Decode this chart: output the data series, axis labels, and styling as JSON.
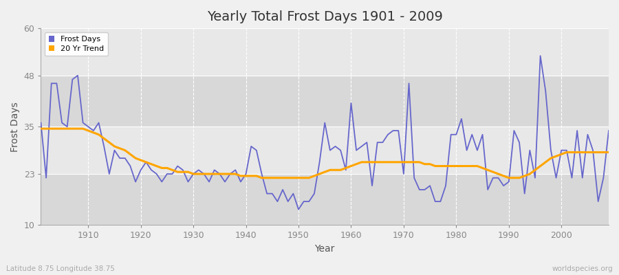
{
  "title": "Yearly Total Frost Days 1901 - 2009",
  "xlabel": "Year",
  "ylabel": "Frost Days",
  "xlim": [
    1901,
    2009
  ],
  "ylim": [
    10,
    60
  ],
  "yticks": [
    10,
    23,
    35,
    48,
    60
  ],
  "xticks": [
    1910,
    1920,
    1930,
    1940,
    1950,
    1960,
    1970,
    1980,
    1990,
    2000
  ],
  "bg_outer": "#f0f0f0",
  "bg_plot": "#e8e8e8",
  "bg_band_light": "#e8e8e8",
  "bg_band_dark": "#d8d8d8",
  "grid_color": "#ffffff",
  "frost_color": "#6666cc",
  "trend_color": "#ffa500",
  "subtitle_left": "Latitude 8.75 Longitude 38.75",
  "subtitle_right": "worldspecies.org",
  "frost_days": {
    "1901": 36,
    "1902": 22,
    "1903": 46,
    "1904": 46,
    "1905": 36,
    "1906": 35,
    "1907": 47,
    "1908": 48,
    "1909": 36,
    "1910": 35,
    "1911": 34,
    "1912": 36,
    "1913": 30,
    "1914": 23,
    "1915": 29,
    "1916": 27,
    "1917": 27,
    "1918": 25,
    "1919": 21,
    "1920": 24,
    "1921": 26,
    "1922": 24,
    "1923": 23,
    "1924": 21,
    "1925": 23,
    "1926": 23,
    "1927": 25,
    "1928": 24,
    "1929": 21,
    "1930": 23,
    "1931": 24,
    "1932": 23,
    "1933": 21,
    "1934": 24,
    "1935": 23,
    "1936": 21,
    "1937": 23,
    "1938": 24,
    "1939": 21,
    "1940": 23,
    "1941": 30,
    "1942": 29,
    "1943": 23,
    "1944": 18,
    "1945": 18,
    "1946": 16,
    "1947": 19,
    "1948": 16,
    "1949": 18,
    "1950": 14,
    "1951": 16,
    "1952": 16,
    "1953": 18,
    "1954": 26,
    "1955": 36,
    "1956": 29,
    "1957": 30,
    "1958": 29,
    "1959": 24,
    "1960": 41,
    "1961": 29,
    "1962": 30,
    "1963": 31,
    "1964": 20,
    "1965": 31,
    "1966": 31,
    "1967": 33,
    "1968": 34,
    "1969": 34,
    "1970": 23,
    "1971": 46,
    "1972": 22,
    "1973": 19,
    "1974": 19,
    "1975": 20,
    "1976": 16,
    "1977": 16,
    "1978": 20,
    "1979": 33,
    "1980": 33,
    "1981": 37,
    "1982": 29,
    "1983": 33,
    "1984": 29,
    "1985": 33,
    "1986": 19,
    "1987": 22,
    "1988": 22,
    "1989": 20,
    "1990": 21,
    "1991": 34,
    "1992": 31,
    "1993": 18,
    "1994": 29,
    "1995": 22,
    "1996": 53,
    "1997": 44,
    "1998": 29,
    "1999": 22,
    "2000": 29,
    "2001": 29,
    "2002": 22,
    "2003": 34,
    "2004": 22,
    "2005": 33,
    "2006": 29,
    "2007": 16,
    "2008": 22,
    "2009": 34
  },
  "trend_days": {
    "1901": 34.5,
    "1902": 34.5,
    "1903": 34.5,
    "1904": 34.5,
    "1905": 34.5,
    "1906": 34.5,
    "1907": 34.5,
    "1908": 34.5,
    "1909": 34.5,
    "1910": 34.0,
    "1911": 33.5,
    "1912": 33.0,
    "1913": 32.0,
    "1914": 31.0,
    "1915": 30.0,
    "1916": 29.5,
    "1917": 29.0,
    "1918": 28.0,
    "1919": 27.0,
    "1920": 26.5,
    "1921": 26.0,
    "1922": 25.5,
    "1923": 25.0,
    "1924": 24.5,
    "1925": 24.5,
    "1926": 24.0,
    "1927": 23.5,
    "1928": 23.5,
    "1929": 23.5,
    "1930": 23.0,
    "1931": 23.0,
    "1932": 23.0,
    "1933": 23.0,
    "1934": 23.0,
    "1935": 23.0,
    "1936": 23.0,
    "1937": 23.0,
    "1938": 23.0,
    "1939": 22.5,
    "1940": 22.5,
    "1941": 22.5,
    "1942": 22.5,
    "1943": 22.0,
    "1944": 22.0,
    "1945": 22.0,
    "1946": 22.0,
    "1947": 22.0,
    "1948": 22.0,
    "1949": 22.0,
    "1950": 22.0,
    "1951": 22.0,
    "1952": 22.0,
    "1953": 22.5,
    "1954": 23.0,
    "1955": 23.5,
    "1956": 24.0,
    "1957": 24.0,
    "1958": 24.0,
    "1959": 24.5,
    "1960": 25.0,
    "1961": 25.5,
    "1962": 26.0,
    "1963": 26.0,
    "1964": 26.0,
    "1965": 26.0,
    "1966": 26.0,
    "1967": 26.0,
    "1968": 26.0,
    "1969": 26.0,
    "1970": 26.0,
    "1971": 26.0,
    "1972": 26.0,
    "1973": 26.0,
    "1974": 25.5,
    "1975": 25.5,
    "1976": 25.0,
    "1977": 25.0,
    "1978": 25.0,
    "1979": 25.0,
    "1980": 25.0,
    "1981": 25.0,
    "1982": 25.0,
    "1983": 25.0,
    "1984": 25.0,
    "1985": 24.5,
    "1986": 24.0,
    "1987": 23.5,
    "1988": 23.0,
    "1989": 22.5,
    "1990": 22.0,
    "1991": 22.0,
    "1992": 22.0,
    "1993": 22.5,
    "1994": 23.0,
    "1995": 24.0,
    "1996": 25.0,
    "1997": 26.0,
    "1998": 27.0,
    "1999": 27.5,
    "2000": 28.0,
    "2001": 28.5,
    "2002": 28.5,
    "2003": 28.5,
    "2004": 28.5,
    "2005": 28.5,
    "2006": 28.5,
    "2007": 28.5,
    "2008": 28.5,
    "2009": 28.5
  }
}
